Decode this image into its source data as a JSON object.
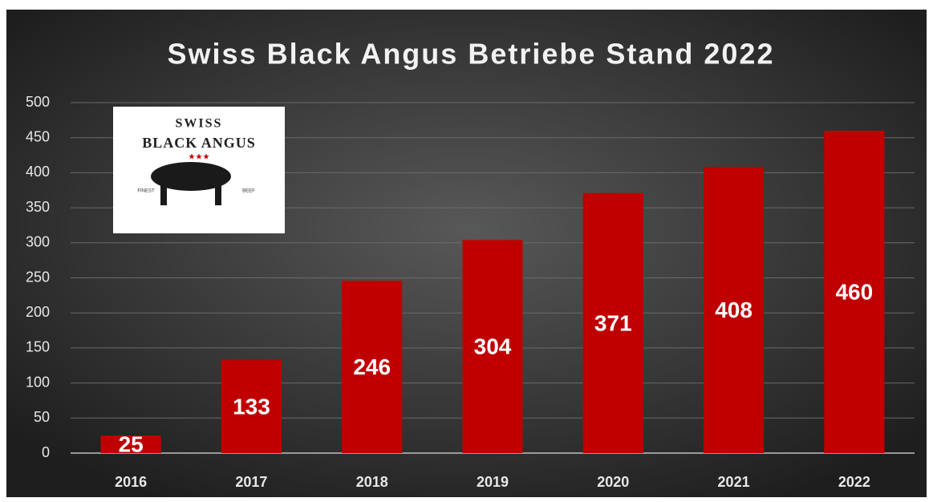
{
  "chart_data": {
    "type": "bar",
    "title": "Swiss Black Angus Betriebe Stand 2022",
    "categories": [
      "2016",
      "2017",
      "2018",
      "2019",
      "2020",
      "2021",
      "2022"
    ],
    "values": [
      25,
      133,
      246,
      304,
      371,
      408,
      460
    ],
    "color": "#c00000",
    "ylim": [
      0,
      500
    ],
    "yticks": [
      0,
      50,
      100,
      150,
      200,
      250,
      300,
      350,
      400,
      450,
      500
    ],
    "grid": true
  },
  "logo": {
    "line1": "SWISS",
    "line2": "BLACK ANGUS",
    "left": "FINEST",
    "right": "BEEF"
  }
}
